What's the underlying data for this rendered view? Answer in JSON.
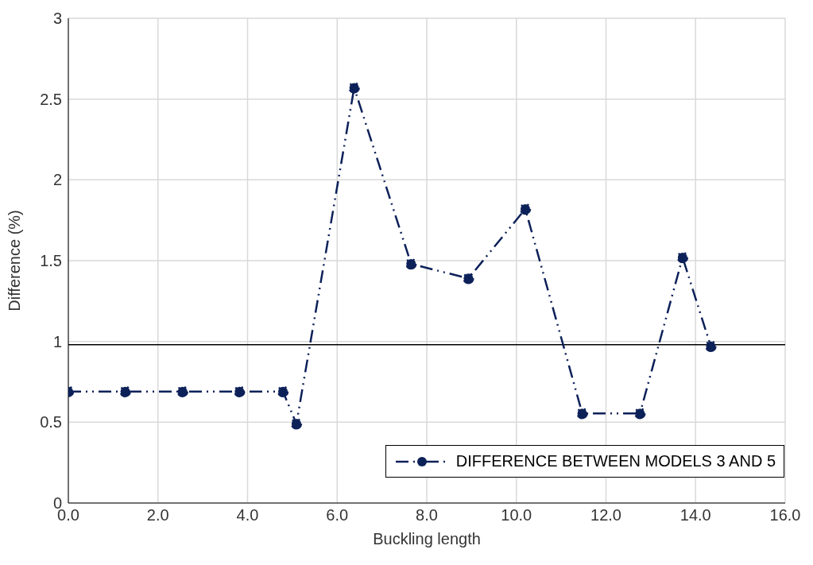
{
  "chart_data": {
    "type": "line",
    "xlabel": "Buckling length",
    "ylabel": "Difference (%)",
    "x": [
      0.0,
      1.27,
      2.55,
      3.82,
      4.79,
      5.09,
      6.38,
      7.65,
      8.93,
      10.2,
      11.47,
      12.76,
      13.71,
      14.34
    ],
    "series": [
      {
        "name": "DIFFERENCE BETWEEN MODELS 3 AND 5",
        "color": "#0d2159",
        "values": [
          0.69,
          0.69,
          0.69,
          0.69,
          0.69,
          0.49,
          2.57,
          1.48,
          1.39,
          1.82,
          0.555,
          0.555,
          1.52,
          0.97
        ]
      }
    ],
    "xlim": [
      0,
      16
    ],
    "xticks": [
      {
        "value": 0,
        "label": "0.0"
      },
      {
        "value": 2,
        "label": "2.0"
      },
      {
        "value": 4,
        "label": "4.0"
      },
      {
        "value": 6,
        "label": "6.0"
      },
      {
        "value": 8,
        "label": "8.0"
      },
      {
        "value": 10,
        "label": "10.0"
      },
      {
        "value": 12,
        "label": "12.0"
      },
      {
        "value": 14,
        "label": "14.0"
      },
      {
        "value": 16,
        "label": "16.0"
      }
    ],
    "ylim": [
      0,
      3
    ],
    "yticks": [
      0,
      0.5,
      1,
      1.5,
      2,
      2.5,
      3
    ],
    "ref_lines": [
      {
        "axis": "y",
        "value": 0.98,
        "color": "#000000"
      }
    ],
    "grid": true,
    "legend": "bottom right",
    "marker": "circle",
    "line_style": "dashed"
  }
}
